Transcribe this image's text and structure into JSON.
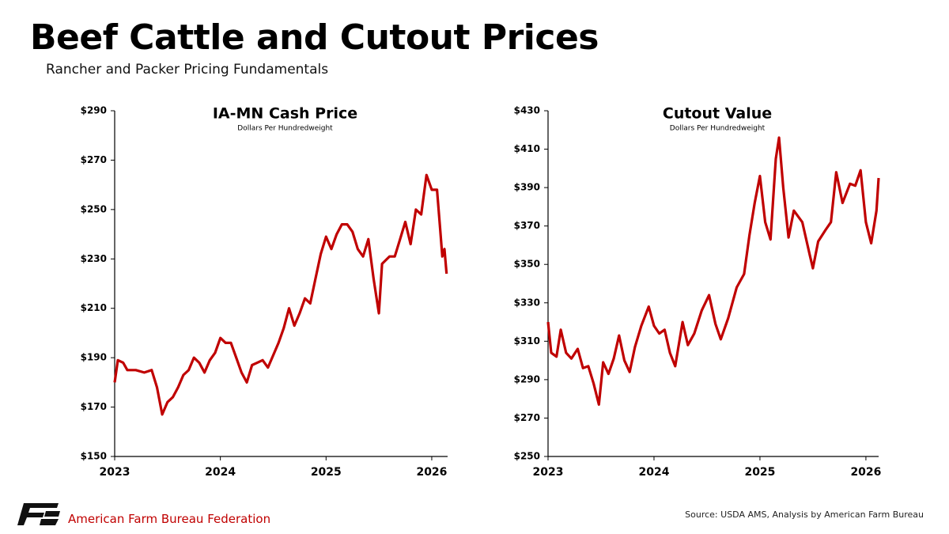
{
  "title": "Beef Cattle and Cutout Prices",
  "subtitle": "Rancher and Packer Pricing Fundamentals",
  "footer": {
    "organization": "American Farm Bureau Federation",
    "source": "Source: USDA AMS, Analysis by American Farm Bureau"
  },
  "chart_data": [
    {
      "type": "line",
      "title": "IA-MN Cash Price",
      "subtitle": "Dollars Per Hundredweight",
      "color": "#c00000",
      "x": [
        2023.0,
        2023.03,
        2023.08,
        2023.12,
        2023.2,
        2023.28,
        2023.35,
        2023.4,
        2023.45,
        2023.5,
        2023.55,
        2023.6,
        2023.65,
        2023.7,
        2023.75,
        2023.8,
        2023.85,
        2023.9,
        2023.95,
        2024.0,
        2024.05,
        2024.1,
        2024.15,
        2024.2,
        2024.25,
        2024.3,
        2024.35,
        2024.4,
        2024.45,
        2024.5,
        2024.55,
        2024.6,
        2024.65,
        2024.7,
        2024.75,
        2024.8,
        2024.85,
        2024.9,
        2024.95,
        2025.0,
        2025.05,
        2025.1,
        2025.15,
        2025.2,
        2025.25,
        2025.3,
        2025.35,
        2025.4,
        2025.45,
        2025.5,
        2025.53,
        2025.6,
        2025.65,
        2025.7,
        2025.75,
        2025.8,
        2025.85,
        2025.9,
        2025.95,
        2026.0,
        2026.05,
        2026.08,
        2026.1,
        2026.12,
        2026.14
      ],
      "values": [
        180,
        189,
        188,
        185,
        185,
        184,
        185,
        178,
        167,
        172,
        174,
        178,
        183,
        185,
        190,
        188,
        184,
        189,
        192,
        198,
        196,
        196,
        190,
        184,
        180,
        187,
        188,
        189,
        186,
        191,
        196,
        202,
        210,
        203,
        208,
        214,
        212,
        222,
        232,
        239,
        234,
        240,
        244,
        244,
        241,
        234,
        231,
        238,
        222,
        208,
        228,
        231,
        231,
        238,
        245,
        236,
        250,
        248,
        264,
        258,
        258,
        242,
        231,
        234,
        224
      ],
      "xlim": [
        2023,
        2026.15
      ],
      "xticks": [
        2023,
        2024,
        2025,
        2026
      ],
      "ylim": [
        150,
        290
      ],
      "yticks": [
        {
          "value": 150,
          "label": "$150"
        },
        {
          "value": 170,
          "label": "$170"
        },
        {
          "value": 190,
          "label": "$190"
        },
        {
          "value": 210,
          "label": "$210"
        },
        {
          "value": 230,
          "label": "$230"
        },
        {
          "value": 250,
          "label": "$250"
        },
        {
          "value": 270,
          "label": "$270"
        },
        {
          "value": 290,
          "label": "$290"
        }
      ],
      "grid": false
    },
    {
      "type": "line",
      "title": "Cutout Value",
      "subtitle": "Dollars Per Hundredweight",
      "color": "#c00000",
      "x": [
        2023.0,
        2023.03,
        2023.08,
        2023.12,
        2023.17,
        2023.22,
        2023.28,
        2023.33,
        2023.38,
        2023.43,
        2023.48,
        2023.52,
        2023.57,
        2023.62,
        2023.67,
        2023.72,
        2023.77,
        2023.82,
        2023.88,
        2023.95,
        2024.0,
        2024.05,
        2024.1,
        2024.15,
        2024.2,
        2024.27,
        2024.32,
        2024.38,
        2024.45,
        2024.52,
        2024.58,
        2024.63,
        2024.7,
        2024.78,
        2024.85,
        2024.9,
        2024.95,
        2025.0,
        2025.05,
        2025.1,
        2025.15,
        2025.18,
        2025.22,
        2025.27,
        2025.32,
        2025.4,
        2025.47,
        2025.5,
        2025.55,
        2025.62,
        2025.67,
        2025.72,
        2025.78,
        2025.85,
        2025.9,
        2025.95,
        2026.0,
        2026.05,
        2026.1,
        2026.12
      ],
      "values": [
        320,
        304,
        302,
        316,
        304,
        301,
        306,
        296,
        297,
        288,
        277,
        299,
        293,
        301,
        313,
        300,
        294,
        307,
        318,
        328,
        318,
        314,
        316,
        304,
        297,
        320,
        308,
        314,
        326,
        334,
        319,
        311,
        322,
        338,
        345,
        365,
        382,
        396,
        372,
        363,
        405,
        416,
        390,
        364,
        378,
        372,
        355,
        348,
        362,
        368,
        372,
        398,
        382,
        392,
        391,
        399,
        372,
        361,
        378,
        395
      ],
      "xlim": [
        2023,
        2026.12
      ],
      "xticks": [
        2023,
        2024,
        2025,
        2026
      ],
      "ylim": [
        250,
        430
      ],
      "yticks": [
        {
          "value": 250,
          "label": "$250"
        },
        {
          "value": 270,
          "label": "$270"
        },
        {
          "value": 290,
          "label": "$290"
        },
        {
          "value": 310,
          "label": "$310"
        },
        {
          "value": 330,
          "label": "$330"
        },
        {
          "value": 350,
          "label": "$350"
        },
        {
          "value": 370,
          "label": "$370"
        },
        {
          "value": 390,
          "label": "$390"
        },
        {
          "value": 410,
          "label": "$410"
        },
        {
          "value": 430,
          "label": "$430"
        }
      ],
      "grid": false
    }
  ]
}
